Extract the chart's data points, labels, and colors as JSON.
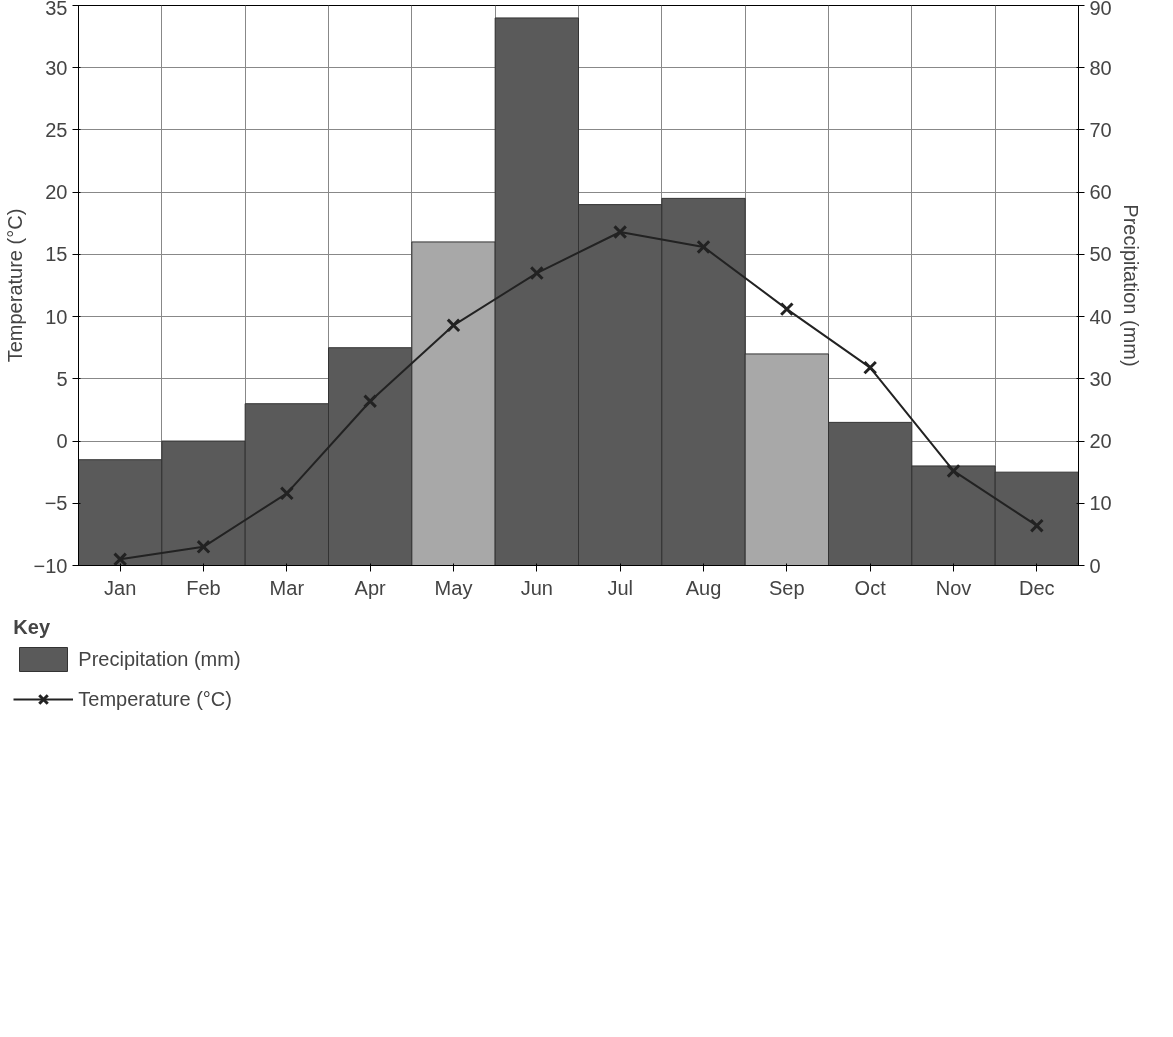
{
  "chart_data": {
    "type": "bar",
    "categories": [
      "Jan",
      "Feb",
      "Mar",
      "Apr",
      "May",
      "Jun",
      "Jul",
      "Aug",
      "Sep",
      "Oct",
      "Nov",
      "Dec"
    ],
    "ylabel": "Temperature (°C)",
    "y2label": "Precipitation (mm)",
    "legend_title": "Key",
    "ylim": [
      -10,
      35
    ],
    "yticks": [
      -10,
      -5,
      0,
      5,
      10,
      15,
      20,
      25,
      30,
      35
    ],
    "y2lim": [
      0,
      90
    ],
    "y2ticks": [
      0,
      10,
      20,
      30,
      40,
      50,
      60,
      70,
      80,
      90
    ],
    "grid": true,
    "legend": "bottom",
    "series": [
      {
        "name": "Precipitation (mm)",
        "axis": "y2",
        "color": "#5a5a5a",
        "colors": [
          "#5a5a5a",
          "#5a5a5a",
          "#5a5a5a",
          "#5a5a5a",
          "#a8a8a8",
          "#5a5a5a",
          "#5a5a5a",
          "#5a5a5a",
          "#a8a8a8",
          "#5a5a5a",
          "#5a5a5a",
          "#5a5a5a"
        ],
        "values": [
          17,
          20,
          26,
          35,
          52,
          88,
          58,
          59,
          34,
          23,
          16,
          15
        ]
      },
      {
        "name": "Temperature (°C)",
        "type": "line",
        "color": "#222222",
        "marker": "cross",
        "values": [
          -9.5,
          -8.5,
          -4.2,
          3.2,
          9.3,
          13.5,
          16.8,
          15.6,
          10.6,
          5.9,
          -2.4,
          -6.8
        ]
      }
    ]
  }
}
